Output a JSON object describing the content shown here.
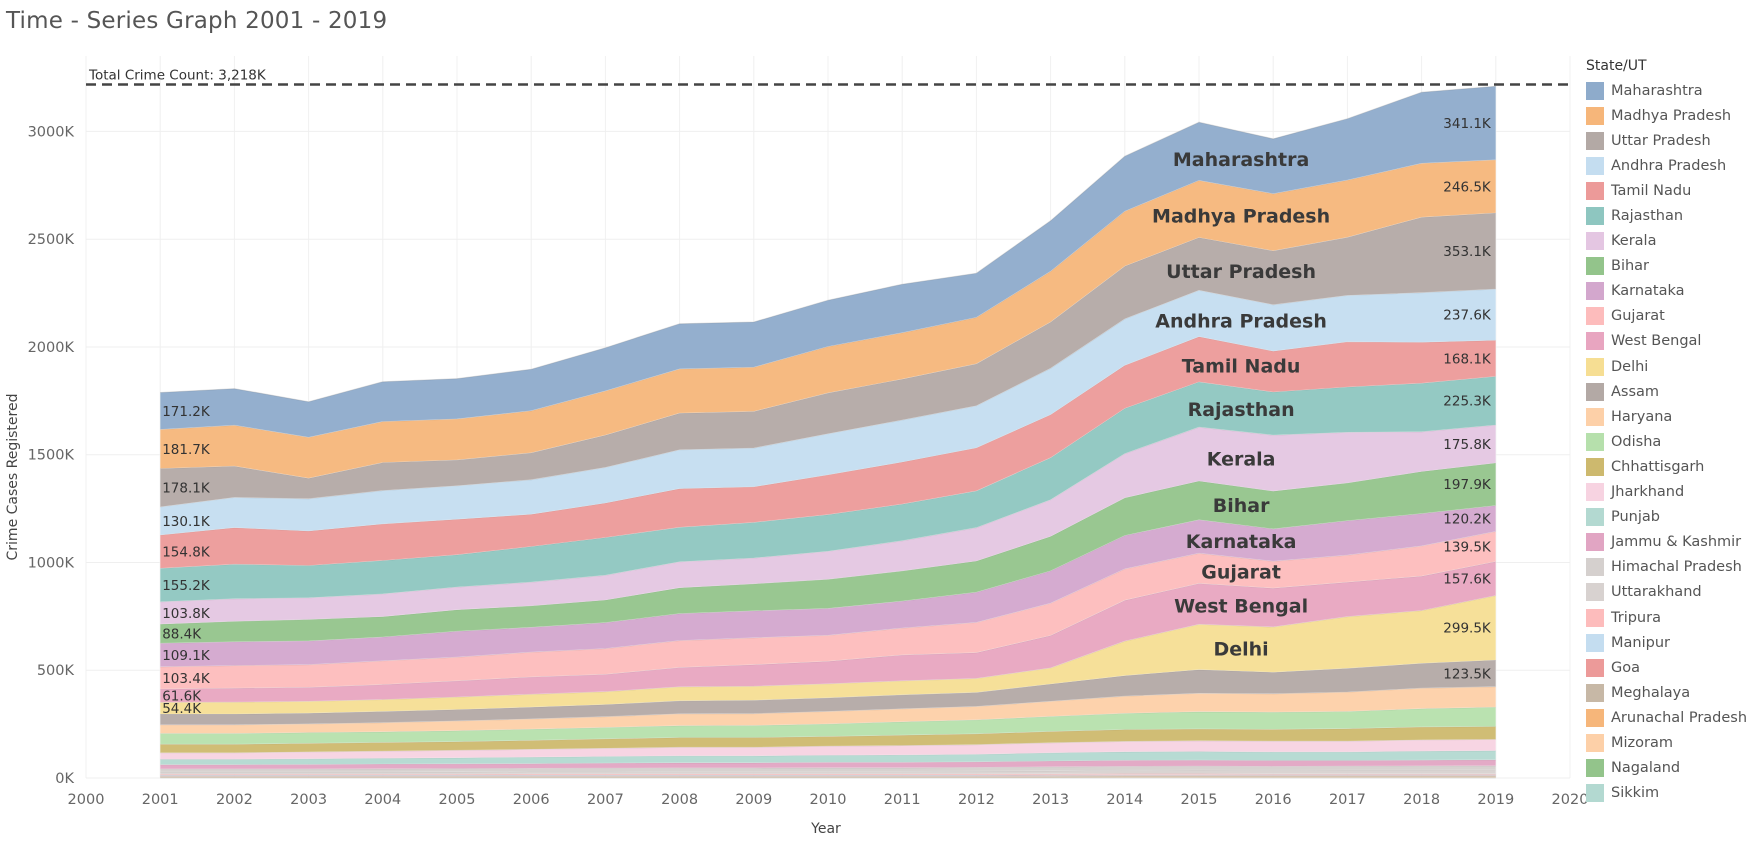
{
  "title": "Time - Series Graph 2001 - 2019",
  "chart_data": {
    "type": "area",
    "stacked": true,
    "xlabel": "Year",
    "ylabel": "Crime Cases Registered",
    "x_ticks": [
      "2000",
      "2001",
      "2002",
      "2003",
      "2004",
      "2005",
      "2006",
      "2007",
      "2008",
      "2009",
      "2010",
      "2011",
      "2012",
      "2013",
      "2014",
      "2015",
      "2016",
      "2017",
      "2018",
      "2019",
      "2020"
    ],
    "y_ticks": [
      "0K",
      "500K",
      "1000K",
      "1500K",
      "2000K",
      "2500K",
      "3000K"
    ],
    "ylim": [
      0,
      3350
    ],
    "xlim": [
      2000,
      2020
    ],
    "grid": true,
    "legend_title": "State/UT",
    "legend_position": "right",
    "reference_line": {
      "value": 3218,
      "label": "Total Crime Count: 3,218K",
      "style": "dashed"
    },
    "x": [
      2001,
      2002,
      2003,
      2004,
      2005,
      2006,
      2007,
      2008,
      2009,
      2010,
      2011,
      2012,
      2013,
      2014,
      2015,
      2016,
      2017,
      2018,
      2019
    ],
    "series": [
      {
        "name": "Maharashtra",
        "color": "#8EABCB",
        "values": [
          171.2,
          170,
          165,
          185,
          187,
          193,
          200,
          210,
          210,
          215,
          225,
          205,
          235,
          255,
          270,
          255,
          285,
          330,
          341.1
        ]
      },
      {
        "name": "Madhya Pradesh",
        "color": "#F6B67A",
        "values": [
          181.7,
          190,
          190,
          190,
          190,
          195,
          205,
          205,
          205,
          215,
          215,
          215,
          235,
          255,
          265,
          265,
          265,
          250,
          246.5
        ]
      },
      {
        "name": "Uttar Pradesh",
        "color": "#B3A9A5",
        "values": [
          178.1,
          145,
          95,
          130,
          120,
          125,
          150,
          170,
          170,
          190,
          190,
          195,
          215,
          245,
          245,
          250,
          270,
          350,
          353.1
        ]
      },
      {
        "name": "Andhra Pradesh",
        "color": "#C4DDF0",
        "values": [
          130.1,
          140,
          150,
          155,
          155,
          160,
          165,
          180,
          180,
          190,
          195,
          195,
          215,
          215,
          215,
          215,
          215,
          230,
          237.6
        ]
      },
      {
        "name": "Tamil Nadu",
        "color": "#EC9A99",
        "values": [
          154.8,
          170,
          160,
          170,
          165,
          150,
          160,
          180,
          165,
          185,
          195,
          200,
          200,
          200,
          210,
          190,
          210,
          190,
          168.1
        ]
      },
      {
        "name": "Rajasthan",
        "color": "#8EC6C0",
        "values": [
          155.2,
          160,
          150,
          155,
          150,
          165,
          175,
          160,
          165,
          170,
          170,
          170,
          195,
          210,
          210,
          200,
          210,
          225,
          225.3
        ]
      },
      {
        "name": "Kerala",
        "color": "#E4C6E2",
        "values": [
          103.8,
          105,
          100,
          105,
          105,
          110,
          115,
          120,
          120,
          130,
          140,
          155,
          170,
          205,
          250,
          260,
          235,
          185,
          175.8
        ]
      },
      {
        "name": "Bihar",
        "color": "#93C48B",
        "values": [
          88.4,
          95,
          100,
          95,
          100,
          100,
          105,
          120,
          125,
          135,
          140,
          145,
          160,
          175,
          180,
          175,
          175,
          195,
          197.9
        ]
      },
      {
        "name": "Karnataka",
        "color": "#D3A7CD",
        "values": [
          109.1,
          110,
          110,
          110,
          120,
          115,
          120,
          125,
          125,
          125,
          125,
          140,
          150,
          155,
          155,
          150,
          160,
          150,
          120.2
        ]
      },
      {
        "name": "Gujarat",
        "color": "#FDBCBC",
        "values": [
          103.4,
          105,
          105,
          110,
          110,
          115,
          120,
          125,
          125,
          120,
          125,
          140,
          150,
          145,
          140,
          125,
          125,
          140,
          139.5
        ]
      },
      {
        "name": "West Bengal",
        "color": "#E8A5C0",
        "values": [
          61.6,
          65,
          65,
          70,
          75,
          80,
          80,
          90,
          100,
          105,
          120,
          120,
          150,
          190,
          190,
          180,
          160,
          160,
          157.6
        ]
      },
      {
        "name": "Delhi",
        "color": "#F6DE93",
        "values": [
          54.4,
          55,
          55,
          55,
          58,
          60,
          60,
          65,
          65,
          65,
          65,
          65,
          75,
          160,
          210,
          210,
          240,
          245,
          299.5
        ]
      },
      {
        "name": "Assam",
        "color": "#B3A9A5",
        "values": [
          50,
          50,
          50,
          52,
          53,
          55,
          56,
          60,
          62,
          63,
          65,
          65,
          80,
          95,
          110,
          100,
          110,
          115,
          123.5
        ]
      },
      {
        "name": "Haryana",
        "color": "#FDD0A8",
        "values": [
          40,
          40,
          40,
          42,
          45,
          47,
          50,
          55,
          55,
          58,
          60,
          62,
          70,
          80,
          85,
          85,
          90,
          95,
          95
        ]
      },
      {
        "name": "Odisha",
        "color": "#B6E0AC",
        "values": [
          50,
          50,
          50,
          50,
          51,
          52,
          53,
          55,
          56,
          58,
          62,
          65,
          70,
          75,
          80,
          80,
          80,
          85,
          90
        ]
      },
      {
        "name": "Chhattisgarh",
        "color": "#CDB96E",
        "values": [
          40,
          40,
          40,
          40,
          40,
          42,
          44,
          45,
          45,
          45,
          48,
          50,
          52,
          55,
          55,
          55,
          58,
          60,
          60
        ]
      },
      {
        "name": "Jharkhand",
        "color": "#F7D3E1",
        "values": [
          30,
          30,
          32,
          33,
          35,
          36,
          38,
          40,
          40,
          42,
          44,
          45,
          47,
          48,
          50,
          50,
          50,
          52,
          52
        ]
      },
      {
        "name": "Punjab",
        "color": "#B3D9D1",
        "values": [
          25,
          25,
          26,
          27,
          28,
          30,
          31,
          32,
          32,
          33,
          34,
          35,
          38,
          40,
          40,
          40,
          40,
          42,
          42
        ]
      },
      {
        "name": "Jammu & Kashmir",
        "color": "#E1A5C3",
        "values": [
          20,
          20,
          21,
          22,
          22,
          22,
          23,
          24,
          24,
          25,
          25,
          26,
          27,
          28,
          28,
          27,
          26,
          27,
          28
        ]
      },
      {
        "name": "Himachal Pradesh",
        "color": "#D5D0CE",
        "values": [
          14,
          14,
          14,
          15,
          15,
          15,
          16,
          16,
          16,
          17,
          17,
          17,
          18,
          18,
          18,
          18,
          18,
          19,
          19
        ]
      },
      {
        "name": "Uttarakhand",
        "color": "#D8D2D0",
        "values": [
          10,
          10,
          10,
          10,
          11,
          11,
          11,
          12,
          12,
          12,
          12,
          13,
          14,
          15,
          16,
          16,
          17,
          17,
          18
        ]
      },
      {
        "name": "Tripura",
        "color": "#FDBCBC",
        "values": [
          4,
          4,
          4,
          4,
          4,
          5,
          5,
          5,
          5,
          5,
          5,
          5,
          5,
          5,
          5,
          4,
          4,
          4,
          4
        ]
      },
      {
        "name": "Manipur",
        "color": "#C4DDF0",
        "values": [
          3,
          3,
          3,
          3,
          3,
          3,
          3,
          3,
          3,
          3,
          3,
          3,
          3,
          3,
          3,
          3,
          3,
          3,
          3
        ]
      },
      {
        "name": "Goa",
        "color": "#EC9A99",
        "values": [
          3,
          3,
          3,
          3,
          3,
          3,
          3,
          3,
          3,
          3,
          3,
          3,
          3,
          3,
          3,
          3,
          3,
          3,
          3
        ]
      },
      {
        "name": "Meghalaya",
        "color": "#C7B8A6",
        "values": [
          2,
          2,
          2,
          2,
          2,
          2,
          2,
          2,
          2,
          2,
          2,
          2,
          3,
          3,
          3,
          3,
          3,
          3,
          3
        ]
      },
      {
        "name": "Arunachal Pradesh",
        "color": "#F6B67A",
        "values": [
          2,
          2,
          2,
          2,
          2,
          2,
          2,
          2,
          2,
          2,
          2,
          2,
          2,
          3,
          3,
          3,
          3,
          3,
          3
        ]
      },
      {
        "name": "Mizoram",
        "color": "#FDD0A8",
        "values": [
          2,
          2,
          2,
          2,
          2,
          2,
          2,
          2,
          2,
          2,
          2,
          2,
          2,
          2,
          2,
          2,
          2,
          2,
          2
        ]
      },
      {
        "name": "Nagaland",
        "color": "#93C48B",
        "values": [
          1,
          1,
          1,
          1,
          1,
          1,
          1,
          1,
          1,
          1,
          1,
          1,
          1,
          1,
          1,
          1,
          1,
          1,
          1
        ]
      },
      {
        "name": "Sikkim",
        "color": "#B3D9D1",
        "values": [
          1,
          1,
          1,
          1,
          1,
          1,
          1,
          1,
          1,
          1,
          1,
          1,
          1,
          1,
          1,
          1,
          1,
          1,
          1
        ]
      }
    ],
    "start_labels": [
      "171.2K",
      "181.7K",
      "178.1K",
      "130.1K",
      "154.8K",
      "155.2K",
      "103.8K",
      "88.4K",
      "109.1K",
      "103.4K",
      "61.6K",
      "54.4K"
    ],
    "end_labels": [
      "341.1K",
      "246.5K",
      "353.1K",
      "237.6K",
      "168.1K",
      "225.3K",
      "175.8K",
      "197.9K",
      "120.2K",
      "139.5K",
      "157.6K",
      "299.5K",
      "123.5K"
    ],
    "inline_labels": [
      "Maharashtra",
      "Madhya Pradesh",
      "Uttar Pradesh",
      "Andhra Pradesh",
      "Tamil Nadu",
      "Rajasthan",
      "Kerala",
      "Bihar",
      "Karnataka",
      "Gujarat",
      "West Bengal",
      "Delhi"
    ]
  }
}
